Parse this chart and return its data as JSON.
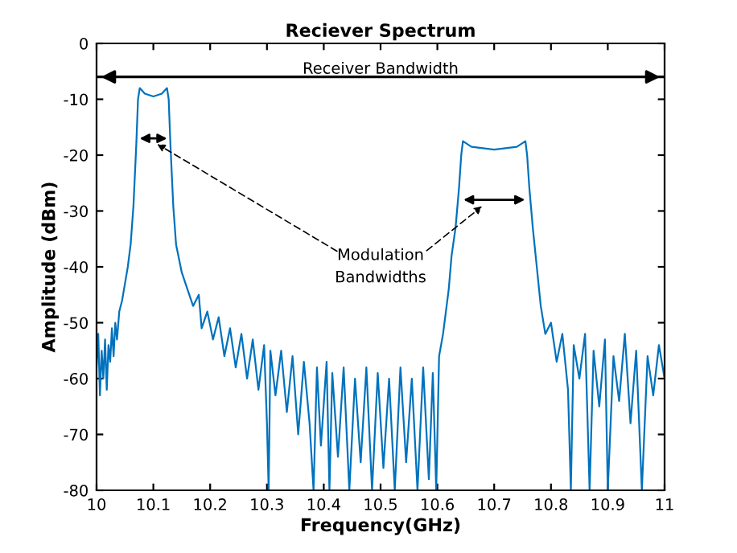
{
  "chart_data": {
    "type": "line",
    "title": "Reciever Spectrum",
    "xlabel": "Frequency(GHz)",
    "ylabel": "Amplitude (dBm)",
    "series": [
      {
        "color": "#0072bd",
        "x": [
          10.0,
          10.003,
          10.006,
          10.009,
          10.012,
          10.015,
          10.018,
          10.021,
          10.024,
          10.027,
          10.03,
          10.033,
          10.036,
          10.04,
          10.045,
          10.05,
          10.055,
          10.06,
          10.065,
          10.07,
          10.073,
          10.076,
          10.085,
          10.1,
          10.115,
          10.124,
          10.127,
          10.13,
          10.135,
          10.14,
          10.15,
          10.16,
          10.17,
          10.18,
          10.185,
          10.195,
          10.205,
          10.215,
          10.225,
          10.235,
          10.245,
          10.255,
          10.265,
          10.275,
          10.285,
          10.295,
          10.3,
          10.303,
          10.306,
          10.315,
          10.325,
          10.335,
          10.345,
          10.355,
          10.365,
          10.375,
          10.382,
          10.388,
          10.395,
          10.405,
          10.41,
          10.415,
          10.425,
          10.435,
          10.445,
          10.455,
          10.465,
          10.475,
          10.485,
          10.495,
          10.505,
          10.515,
          10.525,
          10.535,
          10.545,
          10.555,
          10.565,
          10.575,
          10.585,
          10.592,
          10.598,
          10.603,
          10.61,
          10.615,
          10.62,
          10.625,
          10.632,
          10.638,
          10.642,
          10.645,
          10.66,
          10.7,
          10.74,
          10.755,
          10.758,
          10.762,
          10.768,
          10.775,
          10.782,
          10.79,
          10.8,
          10.81,
          10.82,
          10.83,
          10.835,
          10.84,
          10.85,
          10.86,
          10.868,
          10.875,
          10.885,
          10.895,
          10.9,
          10.91,
          10.92,
          10.93,
          10.94,
          10.95,
          10.96,
          10.97,
          10.98,
          10.99,
          11.0
        ],
        "values": [
          -58,
          -52,
          -63,
          -55,
          -60,
          -53,
          -62,
          -54,
          -57,
          -51,
          -56,
          -50,
          -53,
          -48,
          -46,
          -43,
          -40,
          -36,
          -29,
          -18,
          -10,
          -8,
          -9,
          -9.5,
          -9,
          -8,
          -10,
          -18,
          -29,
          -36,
          -41,
          -44,
          -47,
          -45,
          -51,
          -48,
          -53,
          -49,
          -56,
          -51,
          -58,
          -52,
          -60,
          -53,
          -62,
          -54,
          -68,
          -80,
          -55,
          -63,
          -55,
          -66,
          -56,
          -70,
          -57,
          -68,
          -80,
          -58,
          -72,
          -57,
          -80,
          -59,
          -74,
          -58,
          -80,
          -60,
          -75,
          -58,
          -80,
          -59,
          -76,
          -60,
          -80,
          -58,
          -75,
          -60,
          -80,
          -58,
          -78,
          -59,
          -80,
          -56,
          -52,
          -48,
          -44,
          -38,
          -33,
          -26,
          -20,
          -17.5,
          -18.5,
          -19,
          -18.5,
          -17.5,
          -20,
          -26,
          -33,
          -40,
          -47,
          -52,
          -50,
          -57,
          -52,
          -62,
          -80,
          -54,
          -60,
          -52,
          -80,
          -55,
          -65,
          -53,
          -80,
          -56,
          -64,
          -52,
          -68,
          -55,
          -80,
          -56,
          -63,
          -54,
          -60
        ]
      }
    ],
    "xlim": [
      10,
      11
    ],
    "xticks": [
      10,
      10.1,
      10.2,
      10.3,
      10.4,
      10.5,
      10.6,
      10.7,
      10.8,
      10.9,
      11
    ],
    "ylim": [
      -80,
      0
    ],
    "yticks": [
      -80,
      -70,
      -60,
      -50,
      -40,
      -30,
      -20,
      -10,
      0
    ],
    "ref_lines": [
      {
        "axis": "y",
        "value": -6,
        "label": "Receiver Bandwidth",
        "color": "#000000"
      }
    ],
    "annotations": [
      "Modulation\nBandwidths"
    ]
  }
}
